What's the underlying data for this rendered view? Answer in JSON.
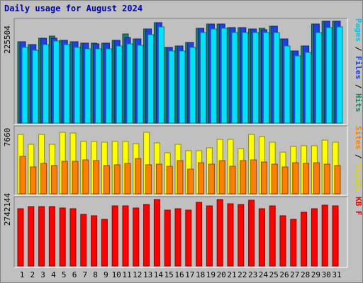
{
  "title": "Daily usage for August 2024",
  "chart_data": [
    {
      "type": "bar",
      "categories": [
        "1",
        "2",
        "3",
        "4",
        "5",
        "6",
        "7",
        "8",
        "9",
        "10",
        "11",
        "12",
        "13",
        "14",
        "15",
        "16",
        "17",
        "18",
        "19",
        "20",
        "21",
        "22",
        "23",
        "24",
        "25",
        "26",
        "27",
        "28",
        "29",
        "30",
        "31"
      ],
      "weekend_days": [
        "3",
        "4",
        "10",
        "11",
        "17",
        "18",
        "24",
        "25",
        "31"
      ],
      "ymax_label": "225504",
      "ylim": [
        0,
        225504
      ],
      "axis_label": [
        {
          "text": "Pages",
          "color": "#00c8e8"
        },
        {
          "text": "Files",
          "color": "#2040d0"
        },
        {
          "text": "Hits",
          "color": "#208060"
        }
      ],
      "series": [
        {
          "name": "Hits",
          "color": "#208060",
          "values": [
            180000,
            174000,
            188000,
            193000,
            184000,
            180000,
            177000,
            177000,
            177000,
            183000,
            197000,
            186000,
            209000,
            223000,
            168000,
            171000,
            178000,
            210000,
            219000,
            219000,
            211000,
            211000,
            209000,
            210000,
            214000,
            186000,
            160000,
            171000,
            219000,
            225000,
            225000
          ]
        },
        {
          "name": "Files",
          "color": "#2040e0",
          "values": [
            180000,
            174000,
            188000,
            188000,
            184000,
            180000,
            177000,
            175000,
            177000,
            183000,
            190000,
            186000,
            209000,
            223000,
            168000,
            171000,
            178000,
            210000,
            219000,
            219000,
            211000,
            211000,
            209000,
            206000,
            214000,
            186000,
            160000,
            171000,
            219000,
            225000,
            225000
          ]
        },
        {
          "name": "Pages",
          "color": "#00e0ff",
          "values": [
            168000,
            162000,
            174000,
            182000,
            174000,
            168000,
            164000,
            164000,
            164000,
            170000,
            175000,
            172000,
            196000,
            213000,
            160000,
            160000,
            168000,
            200000,
            208000,
            210000,
            200000,
            200000,
            200000,
            200000,
            200000,
            171000,
            149000,
            157000,
            200000,
            212000,
            213000
          ]
        }
      ]
    },
    {
      "type": "bar",
      "categories": [
        "1",
        "2",
        "3",
        "4",
        "5",
        "6",
        "7",
        "8",
        "9",
        "10",
        "11",
        "12",
        "13",
        "14",
        "15",
        "16",
        "17",
        "18",
        "19",
        "20",
        "21",
        "22",
        "23",
        "24",
        "25",
        "26",
        "27",
        "28",
        "29",
        "30",
        "31"
      ],
      "ymax_label": "7660",
      "ylim": [
        0,
        7660
      ],
      "axis_label": [
        {
          "text": "Sites",
          "color": "#ff8000"
        },
        {
          "text": "Visits",
          "color": "#d8d800"
        }
      ],
      "series": [
        {
          "name": "Visits",
          "color": "#ffff00",
          "values": [
            7000,
            5800,
            7000,
            5800,
            7250,
            7200,
            6200,
            6200,
            6100,
            6200,
            6150,
            5900,
            7250,
            6000,
            4800,
            5800,
            5050,
            5100,
            5400,
            6450,
            6400,
            5300,
            7000,
            6750,
            6100,
            4900,
            5600,
            5700,
            5700,
            6300,
            6100
          ]
        },
        {
          "name": "Sites",
          "color": "#ff8000",
          "values": [
            4400,
            3200,
            3600,
            3300,
            3850,
            3850,
            4000,
            3950,
            3300,
            3400,
            3600,
            4150,
            3400,
            3500,
            3250,
            3950,
            2950,
            3650,
            3500,
            3900,
            3250,
            3900,
            4000,
            3750,
            3500,
            3200,
            3700,
            3600,
            3650,
            3500,
            3350
          ]
        }
      ]
    },
    {
      "type": "bar",
      "categories": [
        "1",
        "2",
        "3",
        "4",
        "5",
        "6",
        "7",
        "8",
        "9",
        "10",
        "11",
        "12",
        "13",
        "14",
        "15",
        "16",
        "17",
        "18",
        "19",
        "20",
        "21",
        "22",
        "23",
        "24",
        "25",
        "26",
        "27",
        "28",
        "29",
        "30",
        "31"
      ],
      "ymax_label": "2742144",
      "ylim": [
        0,
        2742144
      ],
      "axis_label": [
        {
          "text": "KB F",
          "color": "#e00000"
        }
      ],
      "series": [
        {
          "name": "KB F",
          "color": "#ff0000",
          "values": [
            2350000,
            2440000,
            2440000,
            2440000,
            2390000,
            2370000,
            2130000,
            2060000,
            1930000,
            2490000,
            2490000,
            2390000,
            2530000,
            2740000,
            2310000,
            2350000,
            2310000,
            2620000,
            2490000,
            2740000,
            2580000,
            2530000,
            2700000,
            2350000,
            2490000,
            2080000,
            1930000,
            2210000,
            2350000,
            2510000,
            2490000
          ]
        }
      ]
    }
  ]
}
